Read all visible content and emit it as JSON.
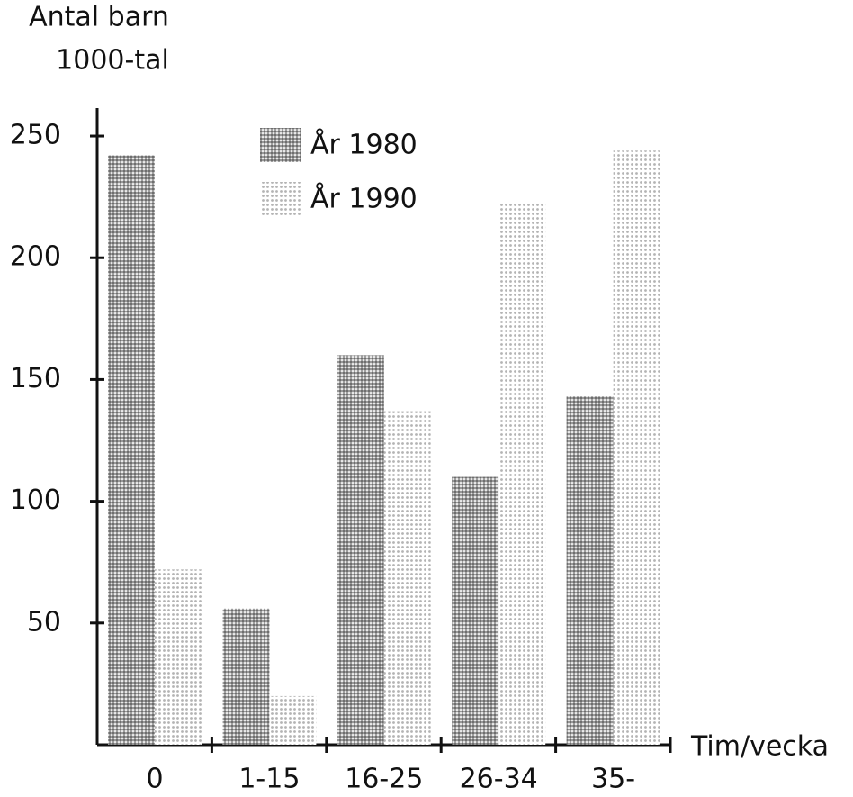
{
  "chart_data": {
    "type": "bar",
    "y_label": [
      "Antal barn",
      "1000-tal"
    ],
    "x_label": "Tim/vecka",
    "categories": [
      "0",
      "1-15",
      "16-25",
      "26-34",
      "35-"
    ],
    "series": [
      {
        "name": "År 1980",
        "color": "#6e6e6e",
        "values": [
          242,
          56,
          160,
          110,
          143
        ]
      },
      {
        "name": "År 1990",
        "color": "#b4b4b4",
        "values": [
          72,
          20,
          137,
          222,
          244
        ]
      }
    ],
    "ylim": [
      0,
      260
    ],
    "yticks": [
      50,
      100,
      150,
      200,
      250
    ]
  }
}
